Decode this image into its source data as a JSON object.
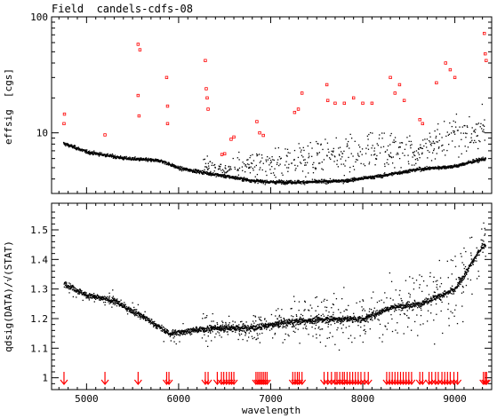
{
  "chart_data": [
    {
      "type": "scatter",
      "title": "Field  candels-cdfs-08",
      "ylabel": "effsig  [cgs]",
      "xlabel": "",
      "xlim": [
        4620,
        9400
      ],
      "ylim": [
        3,
        100
      ],
      "yscale": "log",
      "x_ticks": [
        5000,
        6000,
        7000,
        8000,
        9000
      ],
      "y_ticks": [
        10,
        100
      ],
      "y_tick_labels": [
        "10",
        "100"
      ],
      "colors": {
        "data": "#000000",
        "outlier": "#ff0000"
      },
      "series": [
        {
          "name": "",
          "color": "#000000",
          "baseline": [
            [
              4740,
              8.2
            ],
            [
              5000,
              6.9
            ],
            [
              5400,
              6.1
            ],
            [
              5800,
              5.8
            ],
            [
              6000,
              5.0
            ],
            [
              6400,
              4.4
            ],
            [
              6800,
              3.9
            ],
            [
              7000,
              3.8
            ],
            [
              7400,
              3.8
            ],
            [
              7800,
              3.9
            ],
            [
              8200,
              4.3
            ],
            [
              8600,
              4.9
            ],
            [
              9000,
              5.2
            ],
            [
              9300,
              6.0
            ]
          ],
          "scatter_regions": [
            [
              6280,
              6.5
            ],
            [
              6500,
              6.0
            ],
            [
              6900,
              8.0
            ],
            [
              7300,
              9.0
            ],
            [
              7600,
              10.0
            ],
            [
              7900,
              12.0
            ],
            [
              8300,
              12.0
            ],
            [
              8600,
              10.0
            ],
            [
              8800,
              15.0
            ],
            [
              9000,
              16.0
            ],
            [
              9300,
              18.0
            ]
          ]
        },
        {
          "name": "",
          "color": "#ff0000",
          "points": [
            [
              4755,
              12
            ],
            [
              4760,
              14.5
            ],
            [
              5200,
              9.6
            ],
            [
              5560,
              58
            ],
            [
              5580,
              52
            ],
            [
              5560,
              21
            ],
            [
              5570,
              14
            ],
            [
              5870,
              30
            ],
            [
              5880,
              17
            ],
            [
              5880,
              12
            ],
            [
              6290,
              42
            ],
            [
              6300,
              24
            ],
            [
              6310,
              20
            ],
            [
              6320,
              16
            ],
            [
              6470,
              6.5
            ],
            [
              6500,
              6.6
            ],
            [
              6570,
              8.8
            ],
            [
              6600,
              9.2
            ],
            [
              6850,
              12.5
            ],
            [
              6880,
              10
            ],
            [
              6920,
              9.5
            ],
            [
              7260,
              15
            ],
            [
              7300,
              16
            ],
            [
              7340,
              22
            ],
            [
              7610,
              26
            ],
            [
              7620,
              19
            ],
            [
              7700,
              18
            ],
            [
              7800,
              18
            ],
            [
              7900,
              20
            ],
            [
              8000,
              18
            ],
            [
              8100,
              18
            ],
            [
              8300,
              30
            ],
            [
              8350,
              22
            ],
            [
              8400,
              26
            ],
            [
              8450,
              19
            ],
            [
              8620,
              13
            ],
            [
              8650,
              12
            ],
            [
              8800,
              27
            ],
            [
              8900,
              40
            ],
            [
              8950,
              35
            ],
            [
              9000,
              30
            ],
            [
              9320,
              72
            ],
            [
              9330,
              48
            ],
            [
              9340,
              42
            ]
          ]
        }
      ]
    },
    {
      "type": "scatter",
      "title": "",
      "ylabel": "qdsig(DATA)/√(STAT)",
      "xlabel": "wavelength",
      "xlim": [
        4620,
        9400
      ],
      "ylim": [
        0.96,
        1.59
      ],
      "x_ticks": [
        5000,
        6000,
        7000,
        8000,
        9000
      ],
      "x_tick_labels": [
        "5000",
        "6000",
        "7000",
        "8000",
        "9000"
      ],
      "y_ticks": [
        1.0,
        1.1,
        1.2,
        1.3,
        1.4,
        1.5
      ],
      "y_tick_labels": [
        "1",
        "1.1",
        "1.2",
        "1.3",
        "1.4",
        "1.5"
      ],
      "series": [
        {
          "name": "",
          "color": "#000000",
          "trend": [
            [
              4760,
              1.32
            ],
            [
              5000,
              1.28
            ],
            [
              5300,
              1.26
            ],
            [
              5600,
              1.21
            ],
            [
              5900,
              1.15
            ],
            [
              6100,
              1.16
            ],
            [
              6400,
              1.17
            ],
            [
              6800,
              1.17
            ],
            [
              7200,
              1.19
            ],
            [
              7600,
              1.2
            ],
            [
              8000,
              1.2
            ],
            [
              8300,
              1.24
            ],
            [
              8600,
              1.25
            ],
            [
              9000,
              1.3
            ],
            [
              9300,
              1.45
            ]
          ],
          "scatter_regions": [
            [
              6300,
              0.08
            ],
            [
              6600,
              0.05
            ],
            [
              7000,
              0.08
            ],
            [
              7300,
              0.1
            ],
            [
              7700,
              0.15
            ],
            [
              8100,
              0.12
            ],
            [
              8500,
              0.15
            ],
            [
              8900,
              0.2
            ],
            [
              9200,
              0.15
            ]
          ]
        }
      ],
      "markers": {
        "color": "#ff0000",
        "x": [
          4755,
          5200,
          5560,
          5870,
          5895,
          6290,
          6320,
          6420,
          6465,
          6490,
          6520,
          6550,
          6575,
          6600,
          6840,
          6860,
          6880,
          6900,
          6920,
          6940,
          6960,
          7240,
          7265,
          7290,
          7310,
          7340,
          7580,
          7620,
          7660,
          7700,
          7720,
          7750,
          7780,
          7800,
          7830,
          7860,
          7890,
          7920,
          7950,
          7980,
          8020,
          8060,
          8260,
          8290,
          8320,
          8350,
          8380,
          8410,
          8440,
          8470,
          8500,
          8530,
          8620,
          8650,
          8720,
          8750,
          8790,
          8820,
          8860,
          8890,
          8920,
          8950,
          8990,
          9030,
          9310,
          9330,
          9345
        ]
      }
    }
  ]
}
